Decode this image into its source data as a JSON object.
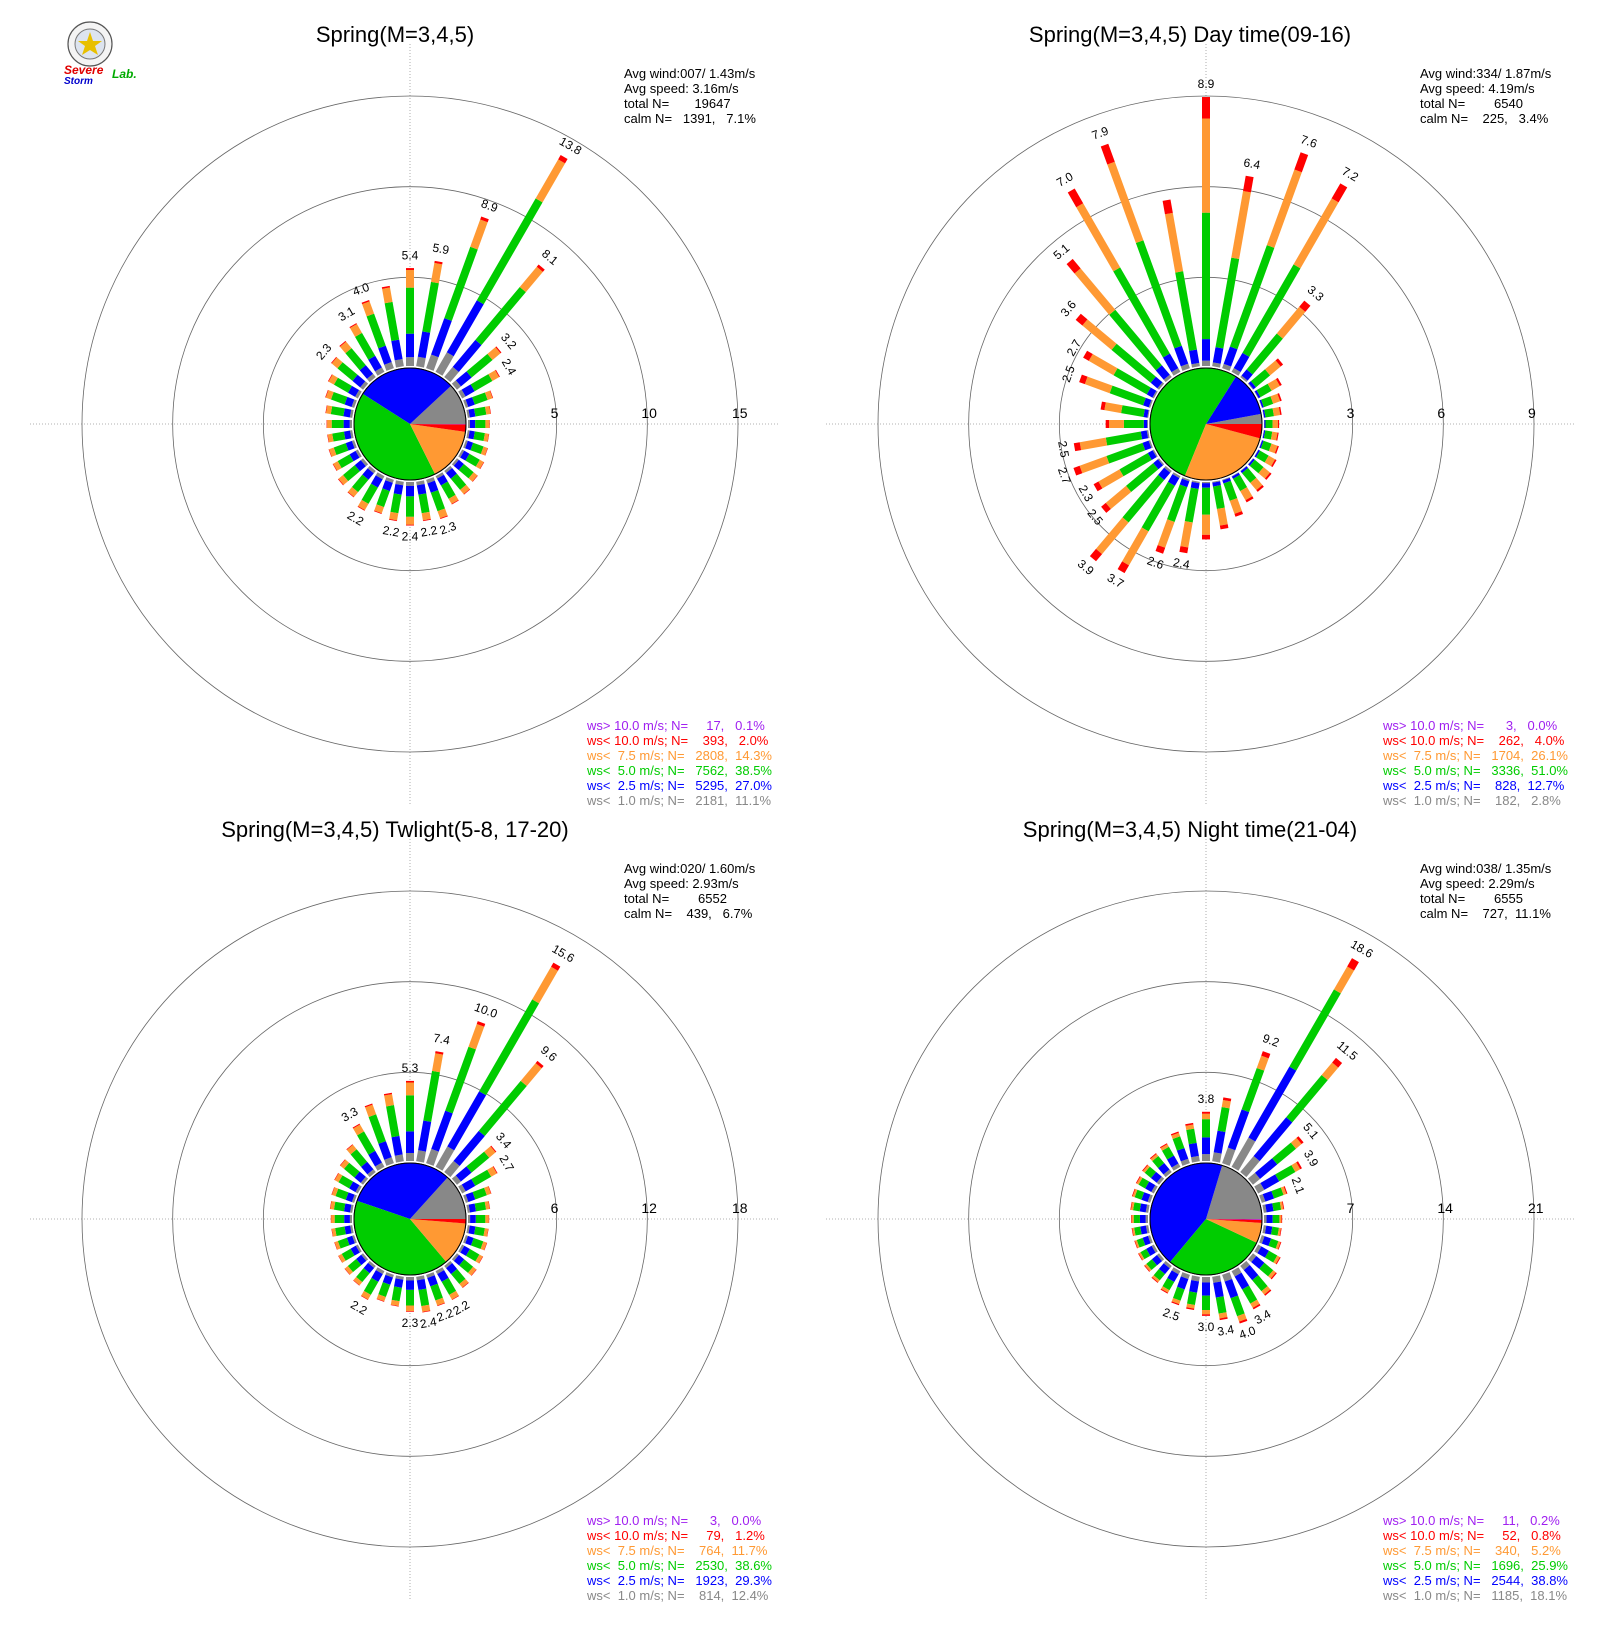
{
  "logo": {
    "word1": "Severe",
    "word2": "Storm",
    "word3": "Lab."
  },
  "chart_data": [
    {
      "type": "wind-rose",
      "title": "Spring(M=3,4,5)",
      "avg_wind": "Avg wind:007/ 1.43m/s",
      "avg_speed": "Avg speed: 3.16m/s",
      "total_n": "total N=       19647",
      "calm_n": "calm N=   1391,   7.1%",
      "scale_max": 15,
      "ticks": [
        "5",
        "10",
        "15"
      ],
      "pie": [
        11.1,
        27.0,
        38.5,
        14.3,
        2.0,
        0.1
      ],
      "legend": [
        {
          "text": "ws> 10.0 m/s; N=     17,   0.1%",
          "color": "#a020f0"
        },
        {
          "text": "ws< 10.0 m/s; N=    393,   2.0%",
          "color": "#ff0000"
        },
        {
          "text": "ws<  7.5 m/s; N=   2808,  14.3%",
          "color": "#ff9933"
        },
        {
          "text": "ws<  5.0 m/s; N=   7562,  38.5%",
          "color": "#00cc00"
        },
        {
          "text": "ws<  2.5 m/s; N=   5295,  27.0%",
          "color": "#0000ff"
        },
        {
          "text": "ws<  1.0 m/s; N=   2181,  11.1%",
          "color": "#888888"
        }
      ],
      "bins": [
        {
          "dir": 0,
          "total": 5.4,
          "label": "5.4"
        },
        {
          "dir": 10,
          "total": 5.9,
          "label": "5.9"
        },
        {
          "dir": 20,
          "total": 8.9,
          "label": "8.9"
        },
        {
          "dir": 30,
          "total": 13.8,
          "label": "13.8"
        },
        {
          "dir": 40,
          "total": 8.1,
          "label": "8.1"
        },
        {
          "dir": 50,
          "total": 3.2,
          "label": "3.2"
        },
        {
          "dir": 60,
          "total": 2.4,
          "label": "2.4"
        },
        {
          "dir": 70,
          "total": 1.6
        },
        {
          "dir": 80,
          "total": 1.3
        },
        {
          "dir": 90,
          "total": 1.2
        },
        {
          "dir": 100,
          "total": 1.2
        },
        {
          "dir": 110,
          "total": 1.3
        },
        {
          "dir": 120,
          "total": 1.4
        },
        {
          "dir": 130,
          "total": 1.5
        },
        {
          "dir": 140,
          "total": 1.7
        },
        {
          "dir": 150,
          "total": 1.8
        },
        {
          "dir": 160,
          "total": 2.3,
          "label": "2.3"
        },
        {
          "dir": 170,
          "total": 2.2,
          "label": "2.2"
        },
        {
          "dir": 180,
          "total": 2.4,
          "label": "2.4"
        },
        {
          "dir": 190,
          "total": 2.2,
          "label": "2.2"
        },
        {
          "dir": 200,
          "total": 2.0
        },
        {
          "dir": 210,
          "total": 2.2,
          "label": "2.2"
        },
        {
          "dir": 220,
          "total": 1.9
        },
        {
          "dir": 230,
          "total": 1.8
        },
        {
          "dir": 240,
          "total": 1.6
        },
        {
          "dir": 250,
          "total": 1.5
        },
        {
          "dir": 260,
          "total": 1.4
        },
        {
          "dir": 270,
          "total": 1.4
        },
        {
          "dir": 280,
          "total": 1.5
        },
        {
          "dir": 290,
          "total": 1.7
        },
        {
          "dir": 300,
          "total": 1.9
        },
        {
          "dir": 310,
          "total": 2.3,
          "label": "2.3"
        },
        {
          "dir": 320,
          "total": 2.6
        },
        {
          "dir": 330,
          "total": 3.1,
          "label": "3.1"
        },
        {
          "dir": 340,
          "total": 4.0,
          "label": "4.0"
        },
        {
          "dir": 350,
          "total": 4.5
        }
      ]
    },
    {
      "type": "wind-rose",
      "title": "Spring(M=3,4,5) Day time(09-16)",
      "avg_wind": "Avg wind:334/ 1.87m/s",
      "avg_speed": "Avg speed: 4.19m/s",
      "total_n": "total N=        6540",
      "calm_n": "calm N=    225,   3.4%",
      "scale_max": 9,
      "ticks": [
        "3",
        "6",
        "9"
      ],
      "pie": [
        2.8,
        12.7,
        51.0,
        26.1,
        4.0,
        0.0
      ],
      "legend": [
        {
          "text": "ws> 10.0 m/s; N=      3,   0.0%",
          "color": "#a020f0"
        },
        {
          "text": "ws< 10.0 m/s; N=    262,   4.0%",
          "color": "#ff0000"
        },
        {
          "text": "ws<  7.5 m/s; N=   1704,  26.1%",
          "color": "#ff9933"
        },
        {
          "text": "ws<  5.0 m/s; N=   3336,  51.0%",
          "color": "#00cc00"
        },
        {
          "text": "ws<  2.5 m/s; N=    828,  12.7%",
          "color": "#0000ff"
        },
        {
          "text": "ws<  1.0 m/s; N=    182,   2.8%",
          "color": "#888888"
        }
      ],
      "bins": [
        {
          "dir": 0,
          "total": 8.9,
          "label": "8.9"
        },
        {
          "dir": 10,
          "total": 6.4,
          "label": "6.4"
        },
        {
          "dir": 20,
          "total": 7.6,
          "label": "7.6"
        },
        {
          "dir": 30,
          "total": 7.2,
          "label": "7.2"
        },
        {
          "dir": 40,
          "total": 3.3,
          "label": "3.3"
        },
        {
          "dir": 50,
          "total": 1.3
        },
        {
          "dir": 60,
          "total": 0.9
        },
        {
          "dir": 70,
          "total": 0.7
        },
        {
          "dir": 80,
          "total": 0.6
        },
        {
          "dir": 90,
          "total": 0.5
        },
        {
          "dir": 100,
          "total": 0.5
        },
        {
          "dir": 110,
          "total": 0.6
        },
        {
          "dir": 120,
          "total": 0.7
        },
        {
          "dir": 130,
          "total": 0.8
        },
        {
          "dir": 140,
          "total": 0.9
        },
        {
          "dir": 150,
          "total": 1.0
        },
        {
          "dir": 160,
          "total": 1.3
        },
        {
          "dir": 170,
          "total": 1.6
        },
        {
          "dir": 180,
          "total": 1.9
        },
        {
          "dir": 190,
          "total": 2.4,
          "label": "2.4"
        },
        {
          "dir": 200,
          "total": 2.6,
          "label": "2.6"
        },
        {
          "dir": 210,
          "total": 3.7,
          "label": "3.7"
        },
        {
          "dir": 220,
          "total": 3.9,
          "label": "3.9"
        },
        {
          "dir": 230,
          "total": 2.5,
          "label": "2.5"
        },
        {
          "dir": 240,
          "total": 2.3,
          "label": "2.3"
        },
        {
          "dir": 250,
          "total": 2.7,
          "label": "2.7"
        },
        {
          "dir": 260,
          "total": 2.5,
          "label": "2.5"
        },
        {
          "dir": 270,
          "total": 1.4
        },
        {
          "dir": 280,
          "total": 1.6
        },
        {
          "dir": 290,
          "total": 2.5,
          "label": "2.5"
        },
        {
          "dir": 300,
          "total": 2.7,
          "label": "2.7"
        },
        {
          "dir": 310,
          "total": 3.6,
          "label": "3.6"
        },
        {
          "dir": 320,
          "total": 5.1,
          "label": "5.1"
        },
        {
          "dir": 330,
          "total": 7.0,
          "label": "7.0"
        },
        {
          "dir": 340,
          "total": 7.9,
          "label": "7.9"
        },
        {
          "dir": 350,
          "total": 5.6
        }
      ]
    },
    {
      "type": "wind-rose",
      "title": "Spring(M=3,4,5) Twlight(5-8, 17-20)",
      "avg_wind": "Avg wind:020/ 1.60m/s",
      "avg_speed": "Avg speed: 2.93m/s",
      "total_n": "total N=        6552",
      "calm_n": "calm N=    439,   6.7%",
      "scale_max": 18,
      "ticks": [
        "6",
        "12",
        "18"
      ],
      "pie": [
        12.4,
        29.3,
        38.6,
        11.7,
        1.2,
        0.0
      ],
      "legend": [
        {
          "text": "ws> 10.0 m/s; N=      3,   0.0%",
          "color": "#a020f0"
        },
        {
          "text": "ws< 10.0 m/s; N=     79,   1.2%",
          "color": "#ff0000"
        },
        {
          "text": "ws<  7.5 m/s; N=    764,  11.7%",
          "color": "#ff9933"
        },
        {
          "text": "ws<  5.0 m/s; N=   2530,  38.6%",
          "color": "#00cc00"
        },
        {
          "text": "ws<  2.5 m/s; N=   1923,  29.3%",
          "color": "#0000ff"
        },
        {
          "text": "ws<  1.0 m/s; N=    814,  12.4%",
          "color": "#888888"
        }
      ],
      "bins": [
        {
          "dir": 0,
          "total": 5.3,
          "label": "5.3"
        },
        {
          "dir": 10,
          "total": 7.4,
          "label": "7.4"
        },
        {
          "dir": 20,
          "total": 10.0,
          "label": "10.0"
        },
        {
          "dir": 30,
          "total": 15.6,
          "label": "15.6"
        },
        {
          "dir": 40,
          "total": 9.6,
          "label": "9.6"
        },
        {
          "dir": 50,
          "total": 3.4,
          "label": "3.4"
        },
        {
          "dir": 60,
          "total": 2.7,
          "label": "2.7"
        },
        {
          "dir": 70,
          "total": 1.8
        },
        {
          "dir": 80,
          "total": 1.5
        },
        {
          "dir": 90,
          "total": 1.4
        },
        {
          "dir": 100,
          "total": 1.4
        },
        {
          "dir": 110,
          "total": 1.5
        },
        {
          "dir": 120,
          "total": 1.6
        },
        {
          "dir": 130,
          "total": 1.7
        },
        {
          "dir": 140,
          "total": 1.9
        },
        {
          "dir": 150,
          "total": 2.2,
          "label": "2.2"
        },
        {
          "dir": 160,
          "total": 2.2,
          "label": "2.2"
        },
        {
          "dir": 170,
          "total": 2.4,
          "label": "2.4"
        },
        {
          "dir": 180,
          "total": 2.3,
          "label": "2.3"
        },
        {
          "dir": 190,
          "total": 2.0
        },
        {
          "dir": 200,
          "total": 1.9
        },
        {
          "dir": 210,
          "total": 2.2,
          "label": "2.2"
        },
        {
          "dir": 220,
          "total": 1.7
        },
        {
          "dir": 230,
          "total": 1.6
        },
        {
          "dir": 240,
          "total": 1.5
        },
        {
          "dir": 250,
          "total": 1.4
        },
        {
          "dir": 260,
          "total": 1.4
        },
        {
          "dir": 270,
          "total": 1.4
        },
        {
          "dir": 280,
          "total": 1.5
        },
        {
          "dir": 290,
          "total": 1.6
        },
        {
          "dir": 300,
          "total": 1.8
        },
        {
          "dir": 310,
          "total": 2.0
        },
        {
          "dir": 320,
          "total": 2.4
        },
        {
          "dir": 330,
          "total": 3.3,
          "label": "3.3"
        },
        {
          "dir": 340,
          "total": 4.2
        },
        {
          "dir": 350,
          "total": 4.6
        }
      ]
    },
    {
      "type": "wind-rose",
      "title": "Spring(M=3,4,5) Night time(21-04)",
      "avg_wind": "Avg wind:038/ 1.35m/s",
      "avg_speed": "Avg speed: 2.29m/s",
      "total_n": "total N=        6555",
      "calm_n": "calm N=    727,  11.1%",
      "scale_max": 21,
      "ticks": [
        "7",
        "14",
        "21"
      ],
      "pie": [
        18.1,
        38.8,
        25.9,
        5.2,
        0.8,
        0.2
      ],
      "legend": [
        {
          "text": "ws> 10.0 m/s; N=     11,   0.2%",
          "color": "#a020f0"
        },
        {
          "text": "ws< 10.0 m/s; N=     52,   0.8%",
          "color": "#ff0000"
        },
        {
          "text": "ws<  7.5 m/s; N=    340,   5.2%",
          "color": "#ff9933"
        },
        {
          "text": "ws<  5.0 m/s; N=   1696,  25.9%",
          "color": "#00cc00"
        },
        {
          "text": "ws<  2.5 m/s; N=   2544,  38.8%",
          "color": "#0000ff"
        },
        {
          "text": "ws<  1.0 m/s; N=   1185,  18.1%",
          "color": "#888888"
        }
      ],
      "bins": [
        {
          "dir": 0,
          "total": 3.8,
          "label": "3.8"
        },
        {
          "dir": 10,
          "total": 5.0
        },
        {
          "dir": 20,
          "total": 9.2,
          "label": "9.2"
        },
        {
          "dir": 30,
          "total": 18.6,
          "label": "18.6"
        },
        {
          "dir": 40,
          "total": 11.5,
          "label": "11.5"
        },
        {
          "dir": 50,
          "total": 5.1,
          "label": "5.1"
        },
        {
          "dir": 60,
          "total": 3.9,
          "label": "3.9"
        },
        {
          "dir": 70,
          "total": 2.1,
          "label": "2.1"
        },
        {
          "dir": 80,
          "total": 1.6
        },
        {
          "dir": 90,
          "total": 1.4
        },
        {
          "dir": 100,
          "total": 1.4
        },
        {
          "dir": 110,
          "total": 1.6
        },
        {
          "dir": 120,
          "total": 2.0
        },
        {
          "dir": 130,
          "total": 2.4
        },
        {
          "dir": 140,
          "total": 3.0
        },
        {
          "dir": 150,
          "total": 3.4,
          "label": "3.4"
        },
        {
          "dir": 160,
          "total": 4.0,
          "label": "4.0"
        },
        {
          "dir": 170,
          "total": 3.4,
          "label": "3.4"
        },
        {
          "dir": 180,
          "total": 3.0,
          "label": "3.0"
        },
        {
          "dir": 190,
          "total": 2.6
        },
        {
          "dir": 200,
          "total": 2.5,
          "label": "2.5"
        },
        {
          "dir": 210,
          "total": 2.0
        },
        {
          "dir": 220,
          "total": 1.7
        },
        {
          "dir": 230,
          "total": 1.5
        },
        {
          "dir": 240,
          "total": 1.4
        },
        {
          "dir": 250,
          "total": 1.3
        },
        {
          "dir": 260,
          "total": 1.3
        },
        {
          "dir": 270,
          "total": 1.3
        },
        {
          "dir": 280,
          "total": 1.4
        },
        {
          "dir": 290,
          "total": 1.5
        },
        {
          "dir": 300,
          "total": 1.6
        },
        {
          "dir": 310,
          "total": 1.7
        },
        {
          "dir": 320,
          "total": 1.9
        },
        {
          "dir": 330,
          "total": 2.1
        },
        {
          "dir": 340,
          "total": 2.6
        },
        {
          "dir": 350,
          "total": 3.0
        }
      ]
    }
  ]
}
